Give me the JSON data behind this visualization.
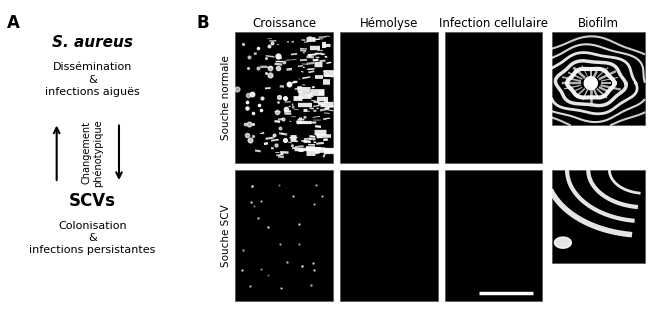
{
  "panel_A_label": "A",
  "panel_B_label": "B",
  "title_species": "S. aureus",
  "text_normal_top": "Dissémination\n&\ninfections aiguës",
  "arrow_label_up": "Changement\nphénotypique",
  "title_scv": "SCVs",
  "text_scv_bottom": "Colonisation\n&\ninfections persistantes",
  "row_labels": [
    "Souche normale",
    "Souche SCV"
  ],
  "col_labels": [
    "Croissance",
    "Hémolyse",
    "Infection cellulaire",
    "Biofilm"
  ],
  "bg_color": "#ffffff",
  "black": "#000000",
  "panel_bg": "#000000",
  "fig_width": 6.55,
  "fig_height": 3.16
}
